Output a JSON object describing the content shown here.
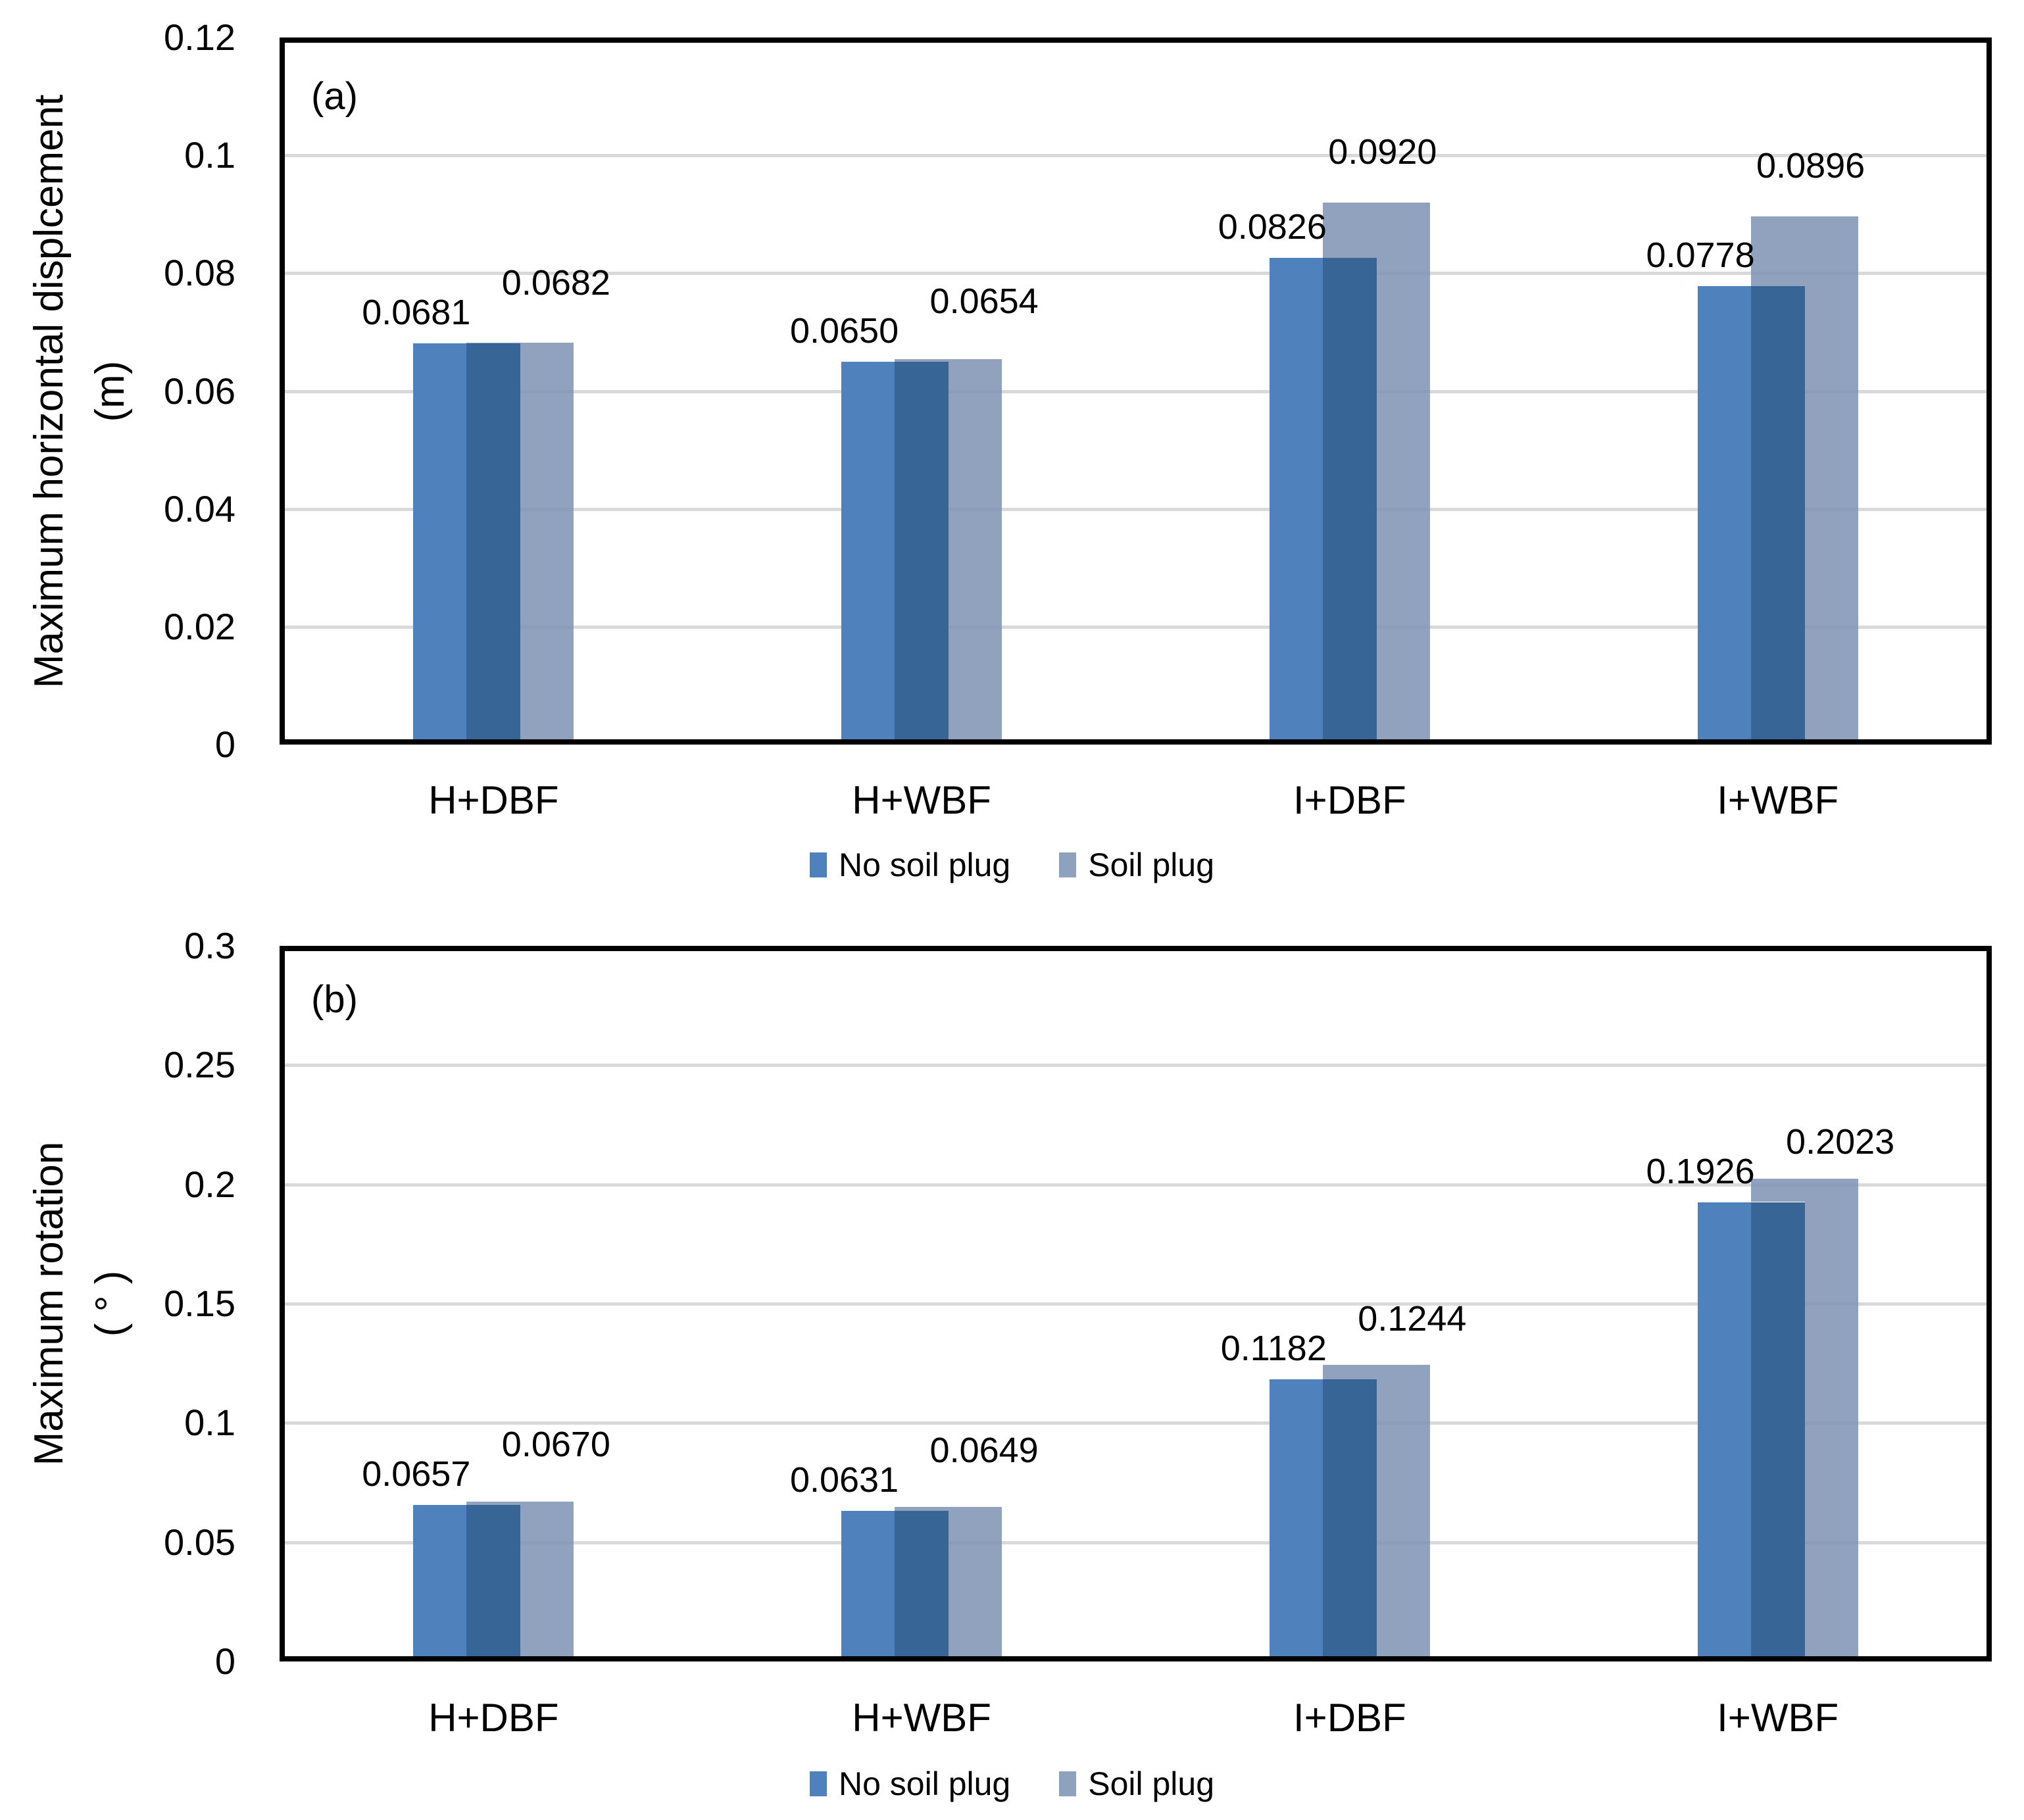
{
  "figure": {
    "background": "#FFFFFF",
    "legend": [
      {
        "name": "No soil plug",
        "color": "#4F81BD"
      },
      {
        "name": "Soil plug",
        "color": "#8FA2BD"
      }
    ]
  },
  "colors": {
    "no_soil_plug": "#4F81BD",
    "soil_plug_fill": "rgba(124,146,178,0.85)",
    "overlap": "#366596",
    "gridline": "#D9D9D9",
    "axis": "#000000",
    "text": "#000000"
  },
  "chart_data": [
    {
      "type": "bar",
      "panel_label": "(a)",
      "ylabel": "Maximum horizontal displcement",
      "ylabel_units": "(m)",
      "ylim": [
        0,
        0.12
      ],
      "ytick_step": 0.02,
      "yticks": [
        "0",
        "0.02",
        "0.04",
        "0.06",
        "0.08",
        "0.1",
        "0.12"
      ],
      "grid": true,
      "legend_position": "bottom",
      "categories": [
        "H+DBF",
        "H+WBF",
        "I+DBF",
        "I+WBF"
      ],
      "series": [
        {
          "name": "No soil plug",
          "values": [
            0.0681,
            0.065,
            0.0826,
            0.0778
          ],
          "labels": [
            "0.0681",
            "0.0650",
            "0.0826",
            "0.0778"
          ]
        },
        {
          "name": "Soil plug",
          "values": [
            0.0682,
            0.0654,
            0.092,
            0.0896
          ],
          "labels": [
            "0.0682",
            "0.0654",
            "0.0920",
            "0.0896"
          ]
        }
      ]
    },
    {
      "type": "bar",
      "panel_label": "(b)",
      "ylabel": "Maximum rotation",
      "ylabel_units": "( ° )",
      "ylim": [
        0,
        0.3
      ],
      "ytick_step": 0.05,
      "yticks": [
        "0",
        "0.05",
        "0.1",
        "0.15",
        "0.2",
        "0.25",
        "0.3"
      ],
      "grid": true,
      "legend_position": "bottom",
      "categories": [
        "H+DBF",
        "H+WBF",
        "I+DBF",
        "I+WBF"
      ],
      "series": [
        {
          "name": "No soil plug",
          "values": [
            0.0657,
            0.0631,
            0.1182,
            0.1926
          ],
          "labels": [
            "0.0657",
            "0.0631",
            "0.1182",
            "0.1926"
          ]
        },
        {
          "name": "Soil plug",
          "values": [
            0.067,
            0.0649,
            0.1244,
            0.2023
          ],
          "labels": [
            "0.0670",
            "0.0649",
            "0.1244",
            "0.2023"
          ]
        }
      ]
    }
  ]
}
